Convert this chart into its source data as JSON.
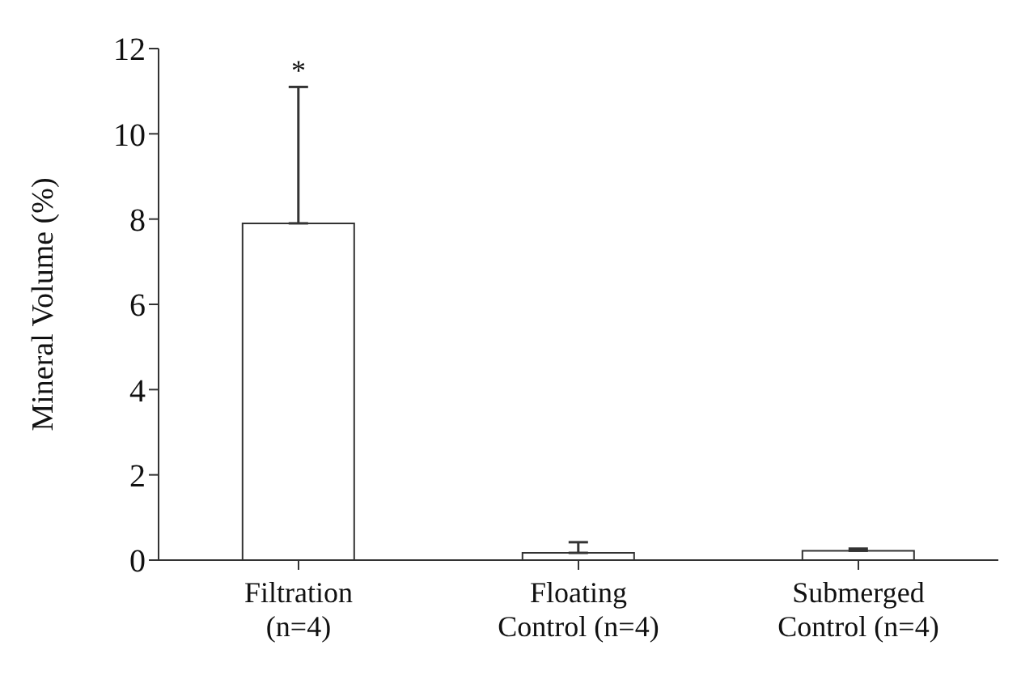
{
  "chart_data": {
    "type": "bar",
    "ylabel": "Mineral Volume (%)",
    "categories": [
      "Filtration (n=4)",
      "Floating Control (n=4)",
      "Submerged Control (n=4)"
    ],
    "values": [
      7.9,
      0.17,
      0.22
    ],
    "errors": [
      [
        7.9,
        11.1
      ],
      [
        0.17,
        0.42
      ],
      [
        0.22,
        0.27
      ]
    ],
    "color": "#ffffff",
    "ylim": [
      0,
      12
    ],
    "yticks": [
      0,
      2,
      4,
      6,
      8,
      10,
      12
    ],
    "grid": false,
    "legend": false,
    "annotations": [
      "*"
    ]
  }
}
